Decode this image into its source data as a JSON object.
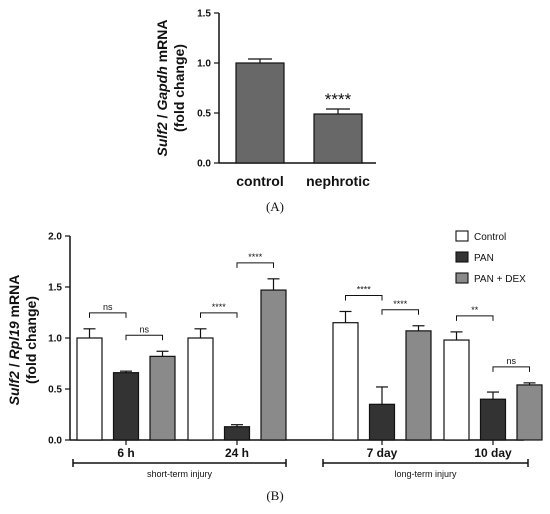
{
  "chart_data": [
    {
      "panel_label": "(A)",
      "type": "bar",
      "ylabel_parts": [
        "Sulf2",
        " / ",
        "Gapdh",
        " mRNA"
      ],
      "ylabel_line2": "(fold change)",
      "yticks": [
        "0.0",
        "0.5",
        "1.0",
        "1.5"
      ],
      "ylim": [
        0,
        1.5
      ],
      "categories": [
        "control",
        "nephrotic"
      ],
      "values": [
        1.0,
        0.49
      ],
      "errors": [
        0.04,
        0.05
      ],
      "annotations": [
        {
          "category": "nephrotic",
          "text": "****"
        }
      ],
      "color": "#686868"
    },
    {
      "panel_label": "(B)",
      "type": "bar",
      "ylabel_parts": [
        "Sulf2",
        " / ",
        "Rpl19",
        " mRNA"
      ],
      "ylabel_line2": "(fold change)",
      "yticks": [
        "0.0",
        "0.5",
        "1.0",
        "1.5",
        "2.0"
      ],
      "ylim": [
        0,
        2.0
      ],
      "categories": [
        "6 h",
        "24 h",
        "7 day",
        "10 day"
      ],
      "series": [
        {
          "name": "Control",
          "color": "#ffffff",
          "values": [
            1.0,
            1.0,
            1.15,
            0.98
          ],
          "errors": [
            0.09,
            0.09,
            0.11,
            0.08
          ]
        },
        {
          "name": "PAN",
          "color": "#333333",
          "values": [
            0.66,
            0.13,
            0.35,
            0.4
          ],
          "errors": [
            0.015,
            0.02,
            0.17,
            0.07
          ]
        },
        {
          "name": "PAN + DEX",
          "color": "#8a8a8a",
          "values": [
            0.82,
            1.47,
            1.07,
            0.54
          ],
          "errors": [
            0.05,
            0.11,
            0.05,
            0.02
          ]
        }
      ],
      "comparisons": [
        {
          "category": "6 h",
          "from": "Control",
          "to": "PAN",
          "text": "ns"
        },
        {
          "category": "6 h",
          "from": "PAN",
          "to": "PAN + DEX",
          "text": "ns"
        },
        {
          "category": "24 h",
          "from": "Control",
          "to": "PAN",
          "text": "****"
        },
        {
          "category": "24 h",
          "from": "PAN",
          "to": "PAN + DEX",
          "text": "****"
        },
        {
          "category": "7 day",
          "from": "Control",
          "to": "PAN",
          "text": "****"
        },
        {
          "category": "7 day",
          "from": "PAN",
          "to": "PAN + DEX",
          "text": "****"
        },
        {
          "category": "10 day",
          "from": "Control",
          "to": "PAN",
          "text": "**"
        },
        {
          "category": "10 day",
          "from": "PAN",
          "to": "PAN + DEX",
          "text": "ns"
        }
      ],
      "groups": [
        {
          "label": "short-term injury",
          "categories": [
            "6 h",
            "24 h"
          ]
        },
        {
          "label": "long-term injury",
          "categories": [
            "7 day",
            "10 day"
          ]
        }
      ],
      "legend_position": "top-right"
    }
  ]
}
